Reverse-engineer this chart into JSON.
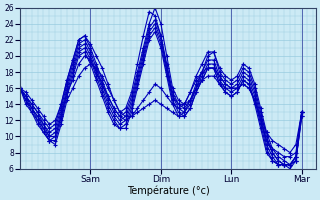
{
  "xlabel": "Température (°c)",
  "bg_color": "#cceaf5",
  "grid_color": "#99cce0",
  "line_color": "#0000bb",
  "marker": "+",
  "ylim": [
    6,
    26
  ],
  "yticks": [
    6,
    8,
    10,
    12,
    14,
    16,
    18,
    20,
    22,
    24,
    26
  ],
  "day_labels": [
    "Sam",
    "Dim",
    "Lun",
    "Mar"
  ],
  "day_positions": [
    0.25,
    0.5,
    0.75,
    1.0
  ],
  "num_points": 49,
  "series": [
    [
      16.0,
      15.0,
      14.0,
      13.0,
      12.0,
      11.0,
      11.5,
      14.0,
      17.0,
      19.5,
      22.0,
      22.5,
      21.0,
      19.0,
      17.0,
      15.0,
      13.5,
      12.5,
      13.0,
      15.0,
      18.0,
      21.0,
      24.0,
      26.0,
      24.0,
      20.0,
      16.0,
      14.5,
      14.0,
      14.5,
      16.0,
      18.0,
      20.0,
      20.5,
      18.0,
      17.0,
      16.5,
      17.0,
      18.5,
      18.0,
      16.0,
      13.0,
      10.0,
      8.0,
      7.0,
      6.5,
      6.0,
      7.0,
      13.0
    ],
    [
      16.0,
      15.0,
      14.0,
      13.0,
      11.5,
      10.5,
      11.0,
      13.5,
      16.5,
      19.0,
      21.5,
      22.0,
      20.5,
      18.5,
      16.5,
      14.5,
      13.0,
      12.0,
      12.5,
      14.5,
      17.5,
      20.5,
      23.5,
      24.5,
      22.5,
      19.0,
      15.5,
      14.0,
      13.5,
      14.5,
      16.5,
      18.0,
      19.5,
      19.5,
      17.5,
      16.5,
      16.0,
      16.5,
      18.0,
      17.5,
      15.5,
      12.5,
      9.5,
      8.0,
      7.0,
      6.5,
      6.5,
      7.5,
      13.0
    ],
    [
      16.0,
      15.0,
      13.5,
      12.5,
      11.5,
      10.0,
      10.5,
      13.0,
      16.0,
      18.5,
      21.0,
      21.5,
      20.0,
      18.0,
      16.0,
      14.0,
      12.5,
      11.5,
      12.0,
      14.0,
      17.0,
      20.0,
      23.0,
      24.0,
      22.0,
      18.5,
      15.0,
      13.5,
      13.0,
      14.0,
      16.0,
      17.5,
      19.0,
      19.0,
      17.0,
      16.0,
      15.5,
      16.0,
      17.5,
      17.0,
      15.0,
      12.0,
      9.0,
      7.5,
      6.5,
      6.5,
      6.5,
      7.5,
      13.0
    ],
    [
      16.0,
      14.5,
      13.5,
      12.5,
      11.0,
      9.5,
      10.0,
      12.5,
      15.5,
      18.0,
      20.5,
      21.0,
      19.5,
      17.5,
      15.5,
      13.5,
      12.0,
      11.0,
      11.5,
      13.5,
      16.5,
      19.5,
      22.5,
      23.5,
      21.5,
      18.0,
      14.5,
      13.0,
      12.5,
      13.5,
      15.5,
      17.0,
      18.5,
      18.5,
      16.5,
      15.5,
      15.0,
      15.5,
      17.0,
      16.5,
      14.5,
      11.5,
      8.5,
      7.0,
      6.5,
      6.5,
      6.5,
      7.0,
      12.5
    ],
    [
      16.0,
      14.5,
      13.0,
      12.0,
      10.5,
      9.5,
      9.5,
      12.0,
      15.0,
      17.5,
      20.0,
      20.5,
      19.0,
      17.0,
      15.0,
      13.0,
      11.5,
      11.0,
      11.0,
      13.0,
      16.0,
      19.0,
      22.0,
      23.0,
      21.0,
      17.5,
      14.0,
      12.5,
      12.5,
      13.5,
      15.5,
      17.0,
      18.5,
      18.5,
      16.5,
      15.5,
      15.0,
      15.5,
      17.0,
      16.5,
      14.0,
      11.0,
      8.0,
      7.0,
      6.5,
      6.5,
      6.5,
      7.0,
      12.5
    ],
    [
      16.0,
      14.5,
      13.5,
      12.0,
      11.0,
      10.0,
      10.0,
      12.5,
      15.5,
      17.0,
      19.0,
      20.0,
      19.5,
      18.0,
      16.5,
      15.0,
      13.5,
      12.5,
      12.0,
      12.5,
      13.5,
      14.5,
      15.5,
      16.5,
      16.0,
      15.0,
      14.0,
      13.5,
      14.0,
      15.5,
      17.0,
      18.0,
      18.5,
      18.5,
      17.5,
      16.5,
      16.0,
      16.0,
      16.5,
      16.0,
      14.5,
      12.0,
      9.5,
      8.5,
      8.0,
      7.5,
      7.5,
      8.0,
      13.0
    ],
    [
      16.0,
      14.0,
      13.0,
      11.5,
      10.5,
      9.5,
      9.0,
      11.5,
      14.5,
      16.0,
      17.5,
      18.5,
      19.0,
      18.5,
      17.5,
      16.0,
      14.5,
      13.0,
      12.5,
      12.5,
      13.0,
      13.5,
      14.0,
      14.5,
      14.0,
      13.5,
      13.0,
      12.5,
      13.0,
      14.5,
      16.0,
      17.0,
      17.5,
      17.5,
      16.5,
      16.0,
      16.0,
      16.0,
      16.5,
      16.0,
      14.5,
      12.5,
      10.5,
      9.5,
      9.0,
      8.5,
      8.0,
      9.0,
      13.0
    ],
    [
      16.0,
      15.5,
      14.5,
      13.5,
      12.5,
      11.5,
      12.0,
      14.0,
      17.0,
      19.5,
      22.0,
      22.5,
      21.5,
      20.0,
      18.5,
      16.5,
      14.5,
      13.0,
      13.5,
      15.5,
      19.0,
      22.5,
      25.5,
      25.0,
      22.5,
      18.5,
      15.0,
      14.0,
      14.0,
      15.5,
      17.5,
      19.0,
      20.5,
      20.5,
      18.5,
      17.5,
      17.0,
      17.5,
      19.0,
      18.5,
      16.5,
      13.5,
      10.5,
      8.5,
      7.5,
      7.0,
      6.5,
      7.5,
      13.0
    ]
  ]
}
